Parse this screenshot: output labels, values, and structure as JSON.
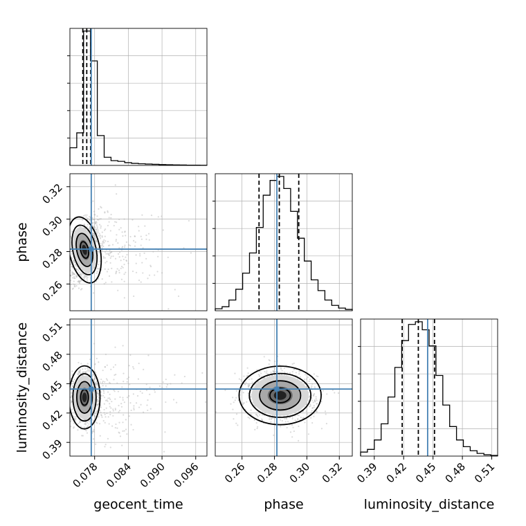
{
  "chart_data": {
    "type": "corner",
    "parameters": [
      "geocent_time",
      "phase",
      "luminosity_distance"
    ],
    "axis_labels": {
      "geocent_time": "geocent_time",
      "phase": "phase",
      "luminosity_distance": "luminosity_distance"
    },
    "ticks": {
      "geocent_time": [
        0.078,
        0.084,
        0.09,
        0.096
      ],
      "phase": [
        0.26,
        0.28,
        0.3,
        0.32
      ],
      "luminosity_distance": [
        0.39,
        0.42,
        0.45,
        0.48,
        0.51
      ]
    },
    "tick_labels": {
      "geocent_time": [
        "0.078",
        "0.084",
        "0.090",
        "0.096"
      ],
      "phase": [
        "0.26",
        "0.28",
        "0.30",
        "0.32"
      ],
      "luminosity_distance": [
        "0.39",
        "0.42",
        "0.45",
        "0.48",
        "0.51"
      ]
    },
    "ranges": {
      "geocent_time": [
        0.0736,
        0.098
      ],
      "phase": [
        0.2435,
        0.328
      ],
      "luminosity_distance": [
        0.376,
        0.516
      ]
    },
    "truths": {
      "geocent_time": 0.0774,
      "phase": 0.2815,
      "luminosity_distance": 0.4445
    },
    "quantiles": {
      "geocent_time": [
        0.0759,
        0.0766,
        0.0773
      ],
      "phase": [
        0.2705,
        0.283,
        0.295
      ],
      "luminosity_distance": [
        0.4185,
        0.435,
        0.4515
      ]
    },
    "histograms": {
      "geocent_time": {
        "edges": [
          0.0736,
          0.07482,
          0.07604,
          0.07726,
          0.07848,
          0.0797,
          0.08092,
          0.08214,
          0.08336,
          0.08458,
          0.0858,
          0.08702,
          0.08824,
          0.08946,
          0.09068,
          0.0919,
          0.09312,
          0.09434,
          0.09556,
          0.09678,
          0.098
        ],
        "counts": [
          0.13,
          0.24,
          0.99,
          0.77,
          0.22,
          0.06,
          0.035,
          0.03,
          0.02,
          0.015,
          0.012,
          0.01,
          0.008,
          0.006,
          0.005,
          0.004,
          0.003,
          0.002,
          0.002,
          0.001
        ]
      },
      "phase": {
        "edges": [
          0.2435,
          0.24772,
          0.25195,
          0.25618,
          0.2604,
          0.26462,
          0.26885,
          0.27307,
          0.2773,
          0.28152,
          0.28575,
          0.28998,
          0.2942,
          0.29843,
          0.30265,
          0.30688,
          0.3111,
          0.31533,
          0.31955,
          0.32378,
          0.328
        ],
        "counts": [
          0.015,
          0.03,
          0.08,
          0.16,
          0.28,
          0.43,
          0.62,
          0.86,
          0.97,
          1.0,
          0.91,
          0.74,
          0.54,
          0.37,
          0.23,
          0.15,
          0.08,
          0.04,
          0.02,
          0.01
        ]
      },
      "luminosity_distance": {
        "edges": [
          0.376,
          0.383,
          0.39,
          0.397,
          0.404,
          0.411,
          0.418,
          0.425,
          0.432,
          0.439,
          0.446,
          0.453,
          0.46,
          0.467,
          0.474,
          0.481,
          0.488,
          0.495,
          0.502,
          0.509,
          0.516
        ],
        "counts": [
          0.03,
          0.05,
          0.12,
          0.24,
          0.44,
          0.66,
          0.86,
          0.98,
          1.0,
          0.94,
          0.82,
          0.6,
          0.38,
          0.22,
          0.12,
          0.07,
          0.04,
          0.02,
          0.01,
          0.005
        ]
      }
    },
    "posterior_2d": {
      "phase_vs_geocent_time": {
        "center": [
          0.0762,
          0.281
        ],
        "sigma": [
          0.0012,
          0.009
        ],
        "rho": 0.45,
        "contour_levels_sigma": [
          0.5,
          1.0,
          1.5,
          2.0
        ]
      },
      "luminosity_distance_vs_geocent_time": {
        "center": [
          0.0762,
          0.436
        ],
        "sigma": [
          0.0012,
          0.014
        ],
        "rho": 0.0,
        "contour_levels_sigma": [
          0.5,
          1.0,
          1.5,
          2.0
        ]
      },
      "luminosity_distance_vs_phase": {
        "center": [
          0.2835,
          0.438
        ],
        "sigma": [
          0.011,
          0.013
        ],
        "rho": -0.05,
        "contour_levels_sigma": [
          0.5,
          1.0,
          1.5,
          2.0
        ]
      }
    },
    "colors": {
      "truth": "#4682b4",
      "hist": "#000000",
      "quantile": "#000000",
      "samples": "#b0b0b0",
      "contour": "#000000",
      "grid": "#b0b0b0"
    },
    "grid": true
  }
}
